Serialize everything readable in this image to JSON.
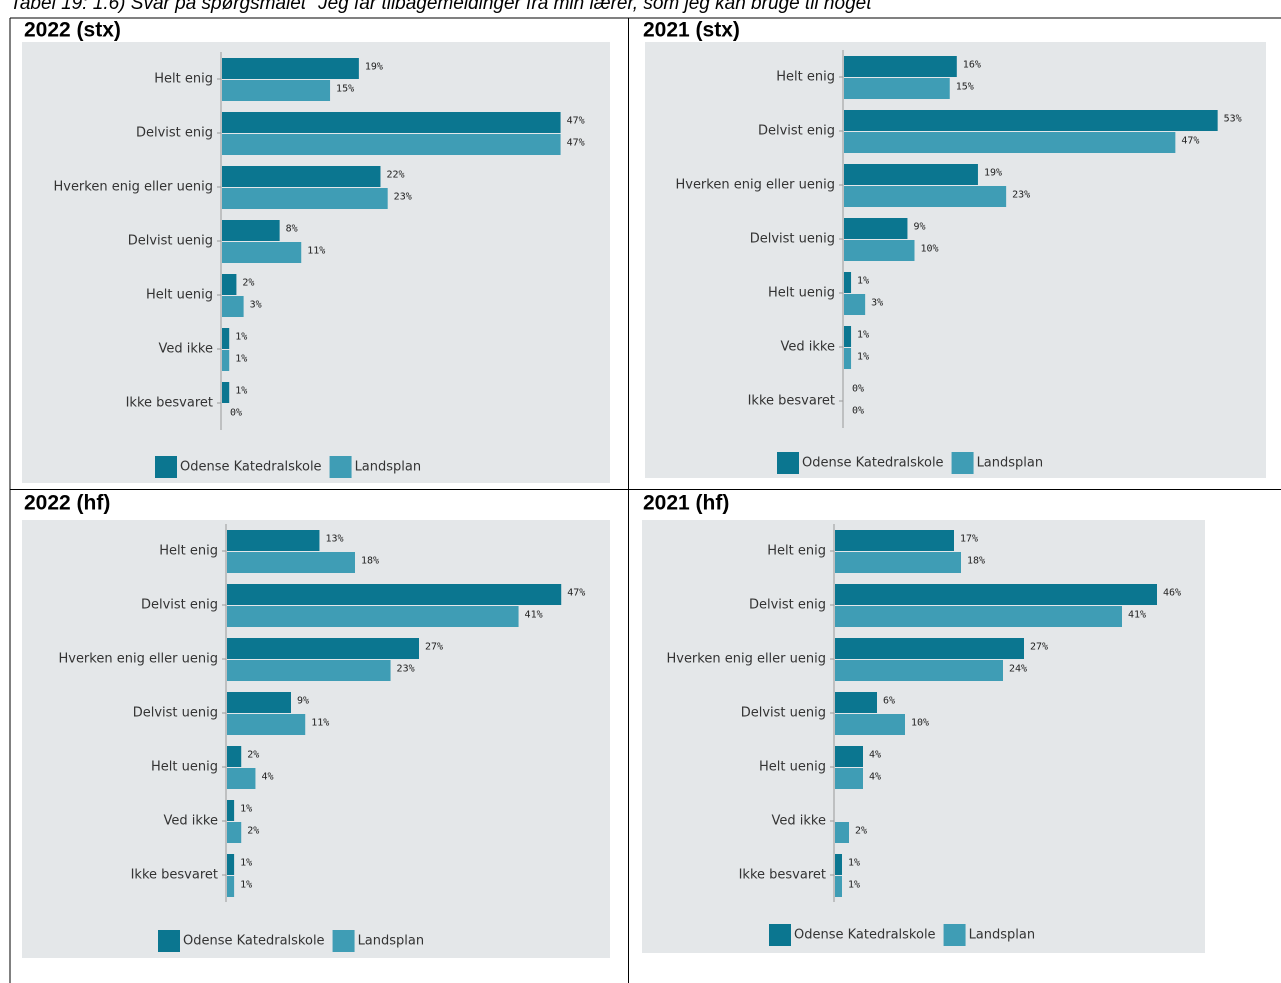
{
  "caption": "Tabel 19: 1.6) Svar på spørgsmålet \"Jeg får tilbagemeldinger fra min lærer, som jeg kan bruge til noget\"",
  "chart_data": [
    {
      "type": "bar",
      "orientation": "horizontal",
      "title": "2022 (stx)",
      "categories": [
        "Helt enig",
        "Delvist enig",
        "Hverken enig eller uenig",
        "Delvist uenig",
        "Helt uenig",
        "Ved ikke",
        "Ikke besvaret"
      ],
      "xlim": [
        0,
        54
      ],
      "series": [
        {
          "name": "Odense Katedralskole",
          "color": "#0b7690",
          "values": [
            19,
            47,
            22,
            8,
            2,
            1,
            1
          ],
          "value_labels": [
            "19%",
            "47%",
            "22%",
            "8%",
            "2%",
            "1%",
            "1%"
          ]
        },
        {
          "name": "Landsplan",
          "color": "#3f9db5",
          "values": [
            15,
            47,
            23,
            11,
            3,
            1,
            0
          ],
          "value_labels": [
            "15%",
            "47%",
            "23%",
            "11%",
            "3%",
            "1%",
            "0%"
          ]
        }
      ]
    },
    {
      "type": "bar",
      "orientation": "horizontal",
      "title": "2021 (stx)",
      "categories": [
        "Helt enig",
        "Delvist enig",
        "Hverken enig eller uenig",
        "Delvist uenig",
        "Helt uenig",
        "Ved ikke",
        "Ikke besvaret"
      ],
      "xlim": [
        0,
        60
      ],
      "series": [
        {
          "name": "Odense Katedralskole",
          "color": "#0b7690",
          "values": [
            16,
            53,
            19,
            9,
            1,
            1,
            0
          ],
          "value_labels": [
            "16%",
            "53%",
            "19%",
            "9%",
            "1%",
            "1%",
            "0%"
          ]
        },
        {
          "name": "Landsplan",
          "color": "#3f9db5",
          "values": [
            15,
            47,
            23,
            10,
            3,
            1,
            0
          ],
          "value_labels": [
            "15%",
            "47%",
            "23%",
            "10%",
            "3%",
            "1%",
            "0%"
          ]
        }
      ]
    },
    {
      "type": "bar",
      "orientation": "horizontal",
      "title": "2022 (hf)",
      "categories": [
        "Helt enig",
        "Delvist enig",
        "Hverken enig eller uenig",
        "Delvist uenig",
        "Helt uenig",
        "Ved ikke",
        "Ikke besvaret"
      ],
      "xlim": [
        0,
        54
      ],
      "series": [
        {
          "name": "Odense Katedralskole",
          "color": "#0b7690",
          "values": [
            13,
            47,
            27,
            9,
            2,
            1,
            1
          ],
          "value_labels": [
            "13%",
            "47%",
            "27%",
            "9%",
            "2%",
            "1%",
            "1%"
          ]
        },
        {
          "name": "Landsplan",
          "color": "#3f9db5",
          "values": [
            18,
            41,
            23,
            11,
            4,
            2,
            1
          ],
          "value_labels": [
            "18%",
            "41%",
            "23%",
            "11%",
            "4%",
            "2%",
            "1%"
          ]
        }
      ]
    },
    {
      "type": "bar",
      "orientation": "horizontal",
      "title": "2021 (hf)",
      "categories": [
        "Helt enig",
        "Delvist enig",
        "Hverken enig eller uenig",
        "Delvist uenig",
        "Helt uenig",
        "Ved ikke",
        "Ikke besvaret"
      ],
      "xlim": [
        0,
        53
      ],
      "series": [
        {
          "name": "Odense Katedralskole",
          "color": "#0b7690",
          "values": [
            17,
            46,
            27,
            6,
            4,
            null,
            1
          ],
          "value_labels": [
            "17%",
            "46%",
            "27%",
            "6%",
            "4%",
            null,
            "1%"
          ]
        },
        {
          "name": "Landsplan",
          "color": "#3f9db5",
          "values": [
            18,
            41,
            24,
            10,
            4,
            2,
            1
          ],
          "value_labels": [
            "18%",
            "41%",
            "24%",
            "10%",
            "4%",
            "2%",
            "1%"
          ]
        }
      ]
    }
  ]
}
